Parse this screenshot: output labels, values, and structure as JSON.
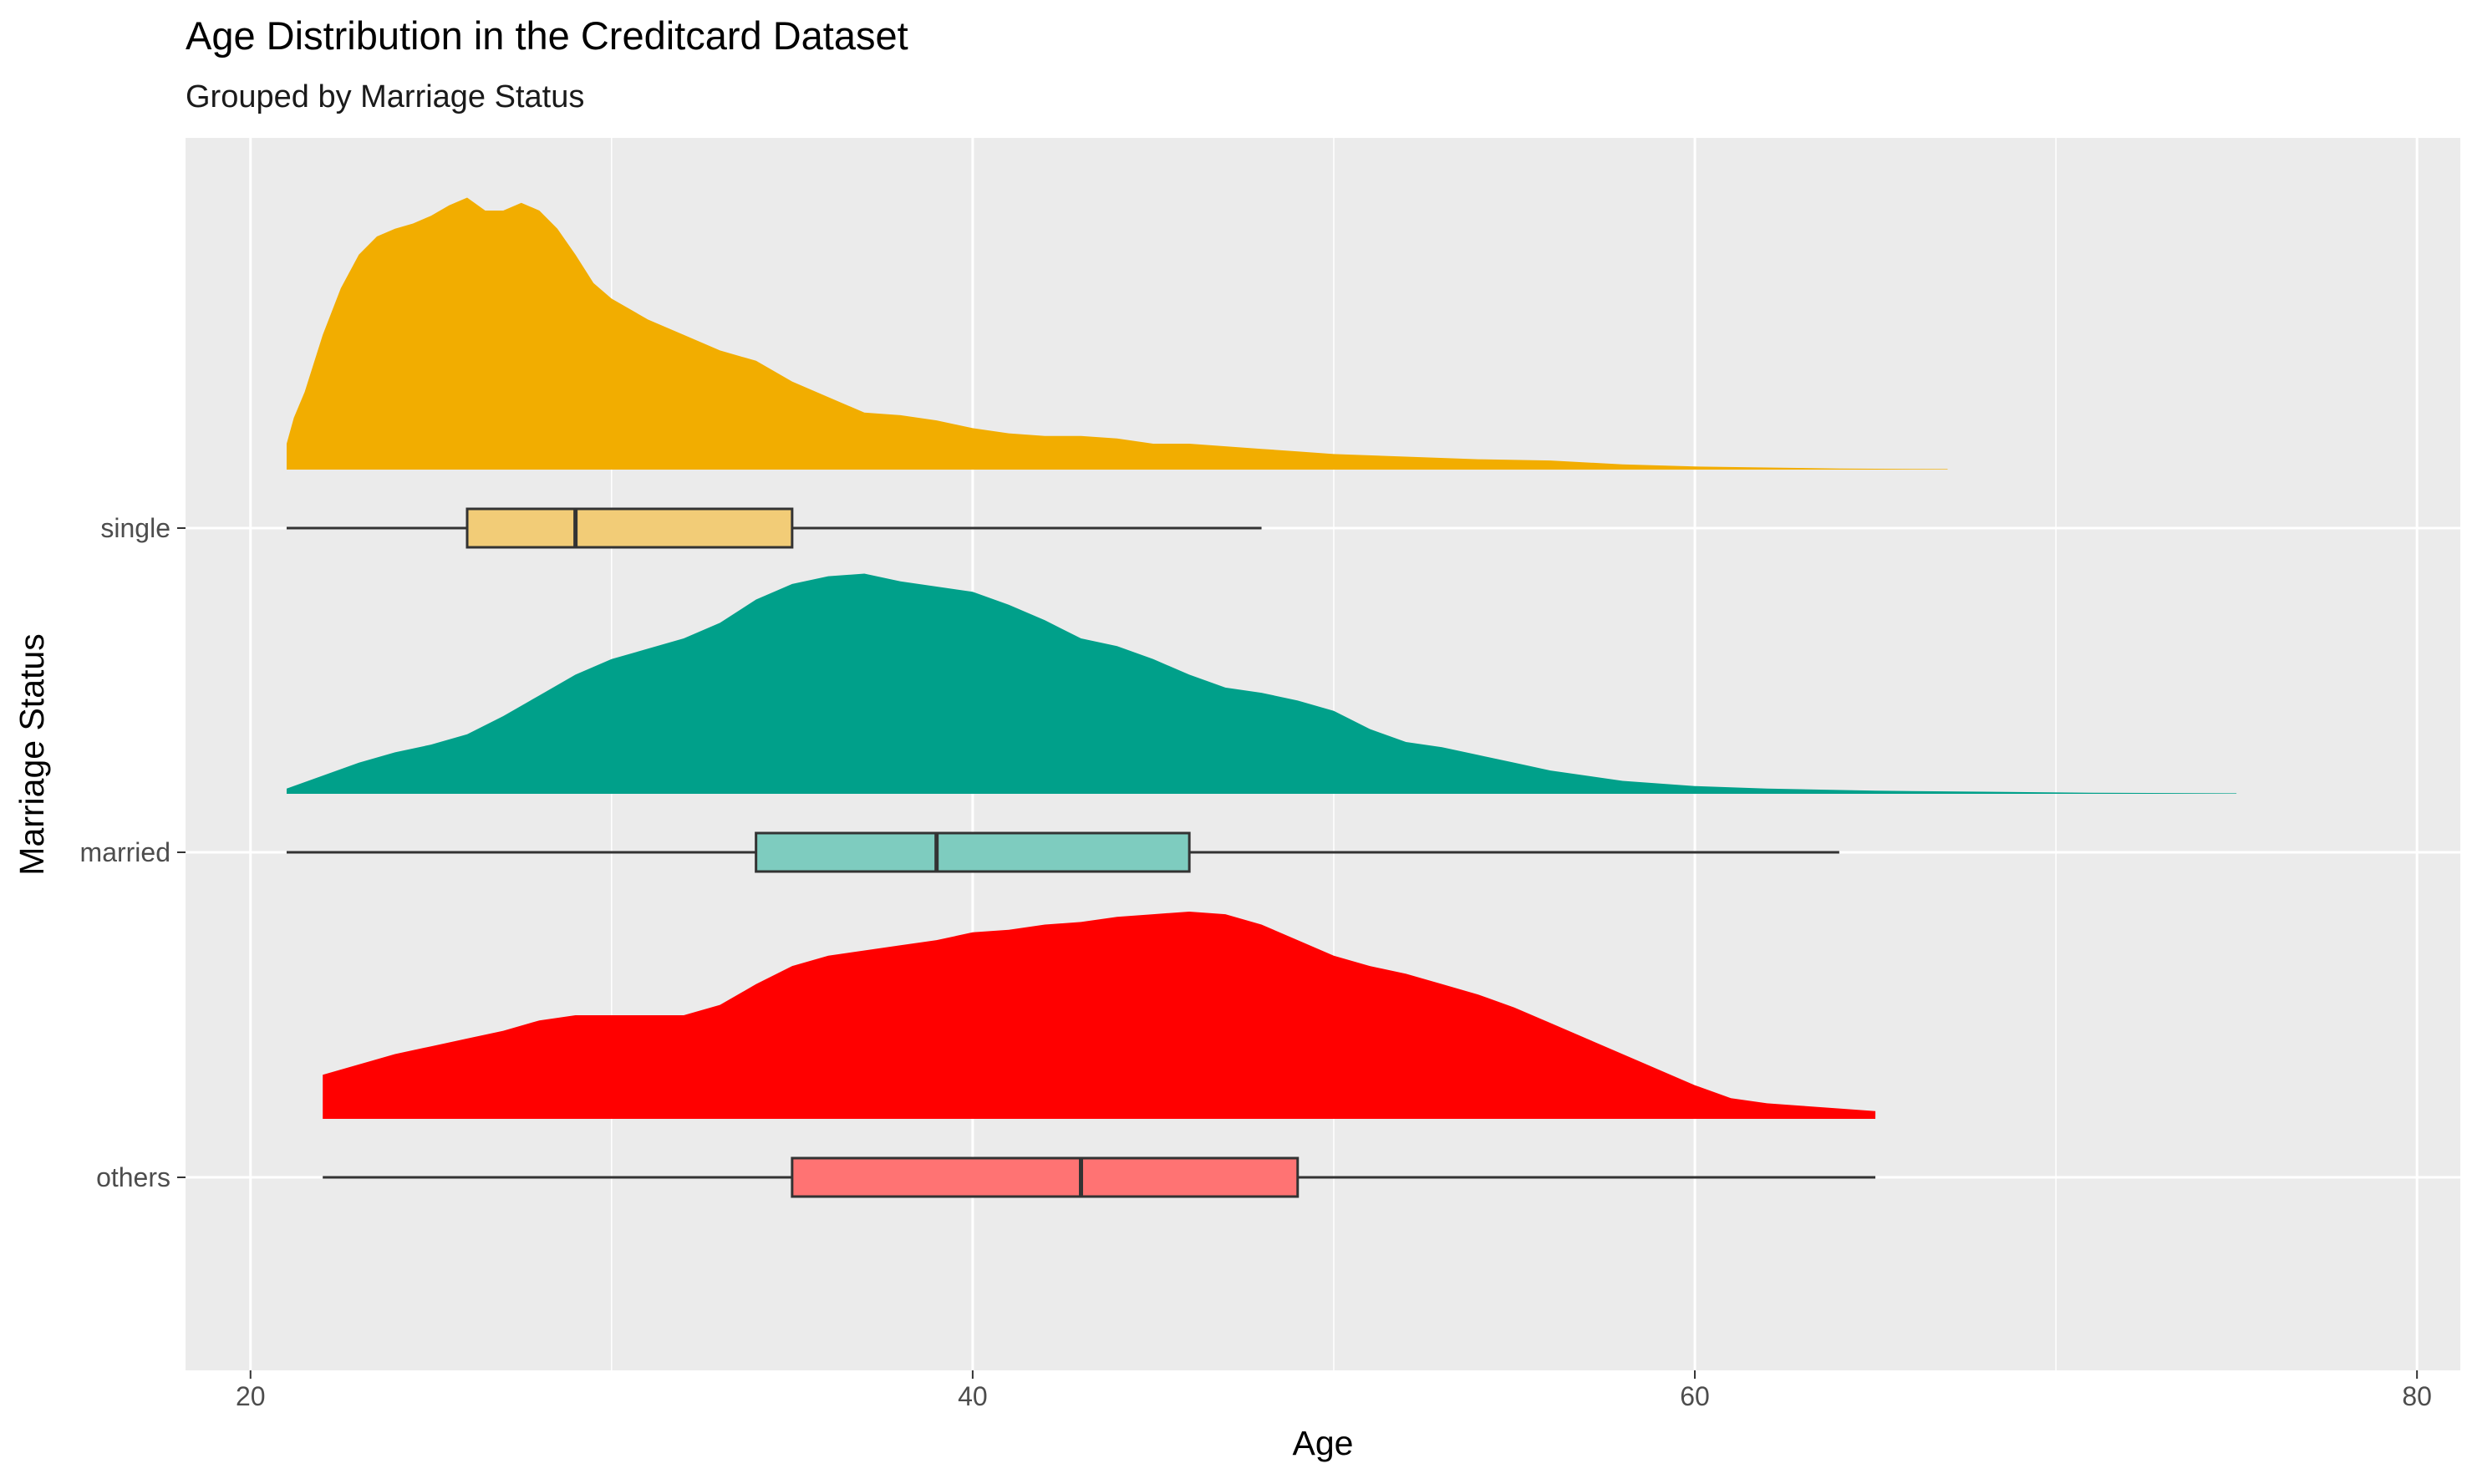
{
  "chart_data": {
    "type": "raincloud",
    "title": "Age Distribution in the Creditcard Dataset",
    "subtitle": "Grouped by Marriage Status",
    "xlabel": "Age",
    "ylabel": "Marriage Status",
    "xlim": [
      18.2,
      81.2
    ],
    "x_ticks": [
      20,
      40,
      60,
      80
    ],
    "x_tick_labels": [
      "20",
      "40",
      "60",
      "80"
    ],
    "grid": true,
    "legend": "none",
    "categories": [
      "single",
      "married",
      "others"
    ],
    "series": [
      {
        "name": "single",
        "density_color": "#F2AD00",
        "box_fill": "#F2CC77",
        "density": {
          "x": [
            21,
            21.2,
            21.5,
            22,
            22.5,
            23,
            23.5,
            24,
            24.5,
            25,
            25.5,
            26,
            26.5,
            27,
            27.5,
            28,
            28.5,
            29,
            29.5,
            30,
            30.5,
            31,
            31.5,
            32,
            33,
            34,
            35,
            36,
            37,
            38,
            39,
            40,
            41,
            42,
            43,
            44,
            45,
            46,
            47,
            48,
            49,
            50,
            52,
            54,
            56,
            58,
            60,
            62,
            64,
            67
          ],
          "y": [
            0.1,
            0.2,
            0.3,
            0.52,
            0.7,
            0.83,
            0.9,
            0.93,
            0.95,
            0.98,
            1.02,
            1.05,
            1.0,
            1.0,
            1.03,
            1.0,
            0.93,
            0.83,
            0.72,
            0.66,
            0.62,
            0.58,
            0.55,
            0.52,
            0.46,
            0.42,
            0.34,
            0.28,
            0.22,
            0.21,
            0.19,
            0.16,
            0.14,
            0.13,
            0.13,
            0.12,
            0.1,
            0.1,
            0.09,
            0.08,
            0.07,
            0.06,
            0.05,
            0.04,
            0.035,
            0.02,
            0.012,
            0.008,
            0.004,
            0.002
          ]
        },
        "box": {
          "min": 21,
          "q1": 26,
          "median": 29,
          "q3": 35,
          "max": 48
        }
      },
      {
        "name": "married",
        "density_color": "#00A08A",
        "box_fill": "#7ECCBF",
        "density": {
          "x": [
            21,
            22,
            23,
            24,
            25,
            26,
            27,
            28,
            29,
            30,
            31,
            32,
            33,
            34,
            35,
            36,
            37,
            38,
            39,
            40,
            41,
            42,
            43,
            44,
            45,
            46,
            47,
            48,
            49,
            50,
            51,
            52,
            53,
            54,
            55,
            56,
            58,
            60,
            62,
            65,
            68,
            71,
            75
          ],
          "y": [
            0.02,
            0.07,
            0.12,
            0.16,
            0.19,
            0.23,
            0.3,
            0.38,
            0.46,
            0.52,
            0.56,
            0.6,
            0.66,
            0.75,
            0.81,
            0.84,
            0.85,
            0.82,
            0.8,
            0.78,
            0.73,
            0.67,
            0.6,
            0.57,
            0.52,
            0.46,
            0.41,
            0.39,
            0.36,
            0.32,
            0.25,
            0.2,
            0.18,
            0.15,
            0.12,
            0.09,
            0.05,
            0.03,
            0.02,
            0.012,
            0.008,
            0.004,
            0.002
          ]
        },
        "box": {
          "min": 21,
          "q1": 34,
          "median": 39,
          "q3": 46,
          "max": 64
        }
      },
      {
        "name": "others",
        "density_color": "#FF0000",
        "box_fill": "#FF7373",
        "density": {
          "x": [
            22,
            23,
            24,
            25,
            26,
            27,
            28,
            29,
            30,
            31,
            32,
            33,
            34,
            35,
            36,
            37,
            38,
            39,
            40,
            41,
            42,
            43,
            44,
            45,
            46,
            47,
            48,
            49,
            50,
            51,
            52,
            53,
            54,
            55,
            56,
            57,
            58,
            59,
            60,
            61,
            62,
            63,
            64,
            65
          ],
          "y": [
            0.17,
            0.21,
            0.25,
            0.28,
            0.31,
            0.34,
            0.38,
            0.4,
            0.4,
            0.4,
            0.4,
            0.44,
            0.52,
            0.59,
            0.63,
            0.65,
            0.67,
            0.69,
            0.72,
            0.73,
            0.75,
            0.76,
            0.78,
            0.79,
            0.8,
            0.79,
            0.75,
            0.69,
            0.63,
            0.59,
            0.56,
            0.52,
            0.48,
            0.43,
            0.37,
            0.31,
            0.25,
            0.19,
            0.13,
            0.08,
            0.06,
            0.05,
            0.04,
            0.03
          ]
        },
        "box": {
          "min": 22,
          "q1": 35,
          "median": 43,
          "q3": 49,
          "max": 65
        }
      }
    ]
  }
}
